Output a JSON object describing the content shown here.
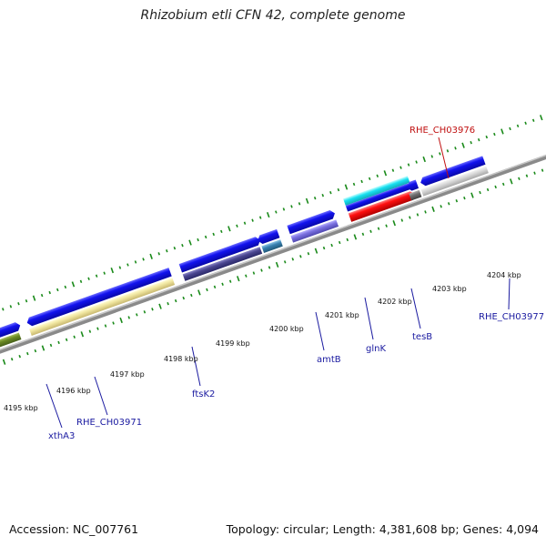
{
  "title": "Rhizobium etli CFN 42, complete genome",
  "footer": {
    "accession": "Accession: NC_007761",
    "summary": "Topology: circular; Length: 4,381,608 bp; Genes: 4,094"
  },
  "colors": {
    "backbone": "#8a8a8a",
    "tick": "#1a8a1a",
    "forward": "#1010e8",
    "label_blue": "#1a1aa0",
    "label_red": "#c01010"
  },
  "scale": {
    "kbp_labels": [
      "4195 kbp",
      "4196 kbp",
      "4197 kbp",
      "4198 kbp",
      "4199 kbp",
      "4200 kbp",
      "4201 kbp",
      "4202 kbp",
      "4203 kbp",
      "4204 kbp"
    ]
  },
  "genes": [
    {
      "name": "xthA3",
      "color": "blue"
    },
    {
      "name": "RHE_CH03971",
      "color": "blue"
    },
    {
      "name": "ftsK2",
      "color": "blue"
    },
    {
      "name": "amtB",
      "color": "blue"
    },
    {
      "name": "glnK",
      "color": "blue"
    },
    {
      "name": "tesB",
      "color": "blue"
    },
    {
      "name": "RHE_CH03977",
      "color": "blue"
    },
    {
      "name": "RHE_CH03976",
      "color": "red"
    }
  ]
}
